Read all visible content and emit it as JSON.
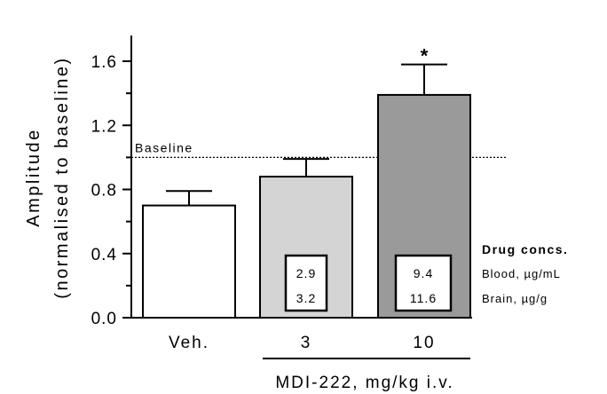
{
  "chart_data": {
    "type": "bar",
    "categories": [
      "Veh.",
      "3",
      "10"
    ],
    "values": [
      0.7,
      0.88,
      1.39
    ],
    "errors": [
      0.09,
      0.11,
      0.19
    ],
    "colors": [
      "#ffffff",
      "#d4d4d4",
      "#9a9a9a"
    ],
    "significance": [
      "",
      "",
      "*"
    ],
    "ylabel_line1": "Amplitude",
    "ylabel_line2": "(normalised to baseline)",
    "xlabel": "MDI-222, mg/kg i.v.",
    "ylim": [
      0,
      1.7
    ],
    "yticks": [
      0.0,
      0.4,
      0.8,
      1.2,
      1.6
    ],
    "ytick_labels": [
      "0.0",
      "0.4",
      "0.8",
      "1.2",
      "1.6"
    ],
    "baseline": {
      "value": 1.0,
      "label": "Baseline"
    },
    "drug_concs": {
      "title": "Drug concs.",
      "row_labels": [
        "Blood, µg/mL",
        "Brain, µg/g"
      ],
      "boxes": [
        {
          "category": "3",
          "blood": "2.9",
          "brain": "3.2"
        },
        {
          "category": "10",
          "blood": "9.4",
          "brain": "11.6"
        }
      ]
    }
  }
}
